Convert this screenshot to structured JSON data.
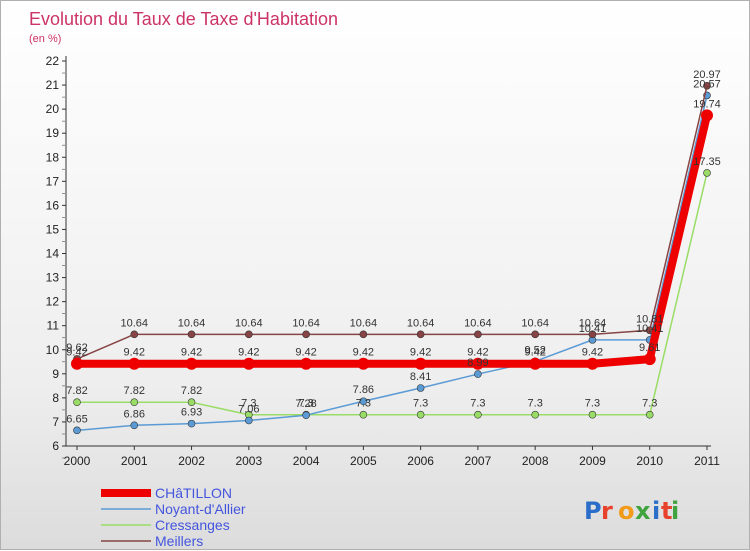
{
  "chart_data": {
    "type": "line",
    "title": "Evolution du Taux de Taxe d'Habitation",
    "subtitle": "(en %)",
    "x": [
      "2000",
      "2001",
      "2002",
      "2003",
      "2004",
      "2005",
      "2006",
      "2007",
      "2008",
      "2009",
      "2010",
      "2011"
    ],
    "ylim": [
      6,
      22
    ],
    "yticks": [
      6,
      7,
      8,
      9,
      10,
      11,
      12,
      13,
      14,
      15,
      16,
      17,
      18,
      19,
      20,
      21,
      22
    ],
    "grid": false,
    "legend_position": "bottom-left",
    "series": [
      {
        "name": "CHâTILLON",
        "color": "#ee0000",
        "width": 8,
        "marker": 6,
        "values": [
          9.42,
          9.42,
          9.42,
          9.42,
          9.42,
          9.42,
          9.42,
          9.42,
          9.42,
          9.42,
          9.61,
          19.74
        ],
        "labels": [
          "9.42",
          "9.42",
          "9.42",
          "9.42",
          "9.42",
          "9.42",
          "9.42",
          "9.42",
          "9.42",
          "9.42",
          "9.61",
          "19.74"
        ]
      },
      {
        "name": "Noyant-d'Allier",
        "color": "#5b9bd5",
        "width": 1.5,
        "marker": 3.5,
        "values": [
          6.65,
          6.86,
          6.93,
          7.06,
          7.28,
          7.86,
          8.41,
          8.99,
          9.52,
          10.41,
          10.41,
          20.57
        ],
        "labels": [
          "6.65",
          "6.86",
          "6.93",
          "7.06",
          "7.28",
          "7.86",
          "8.41",
          "8.99",
          "9.52",
          "10.41",
          "10.41",
          "20.57"
        ]
      },
      {
        "name": "Cressanges",
        "color": "#99dd66",
        "width": 1.5,
        "marker": 3.5,
        "values": [
          7.82,
          7.82,
          7.82,
          7.3,
          7.3,
          7.3,
          7.3,
          7.3,
          7.3,
          7.3,
          7.3,
          17.35
        ],
        "labels": [
          "7.82",
          "7.82",
          "7.82",
          "7.3",
          "7.3",
          "7.3",
          "7.3",
          "7.3",
          "7.3",
          "7.3",
          "7.3",
          "17.35"
        ]
      },
      {
        "name": "Meillers",
        "color": "#884444",
        "width": 1.5,
        "marker": 3.5,
        "values": [
          9.62,
          10.64,
          10.64,
          10.64,
          10.64,
          10.64,
          10.64,
          10.64,
          10.64,
          10.64,
          10.81,
          20.97
        ],
        "labels": [
          "9.62",
          "10.64",
          "10.64",
          "10.64",
          "10.64",
          "10.64",
          "10.64",
          "10.64",
          "10.64",
          "10.64",
          "10.81",
          "20.97"
        ]
      }
    ]
  },
  "logo": {
    "text": "Proxiti"
  }
}
